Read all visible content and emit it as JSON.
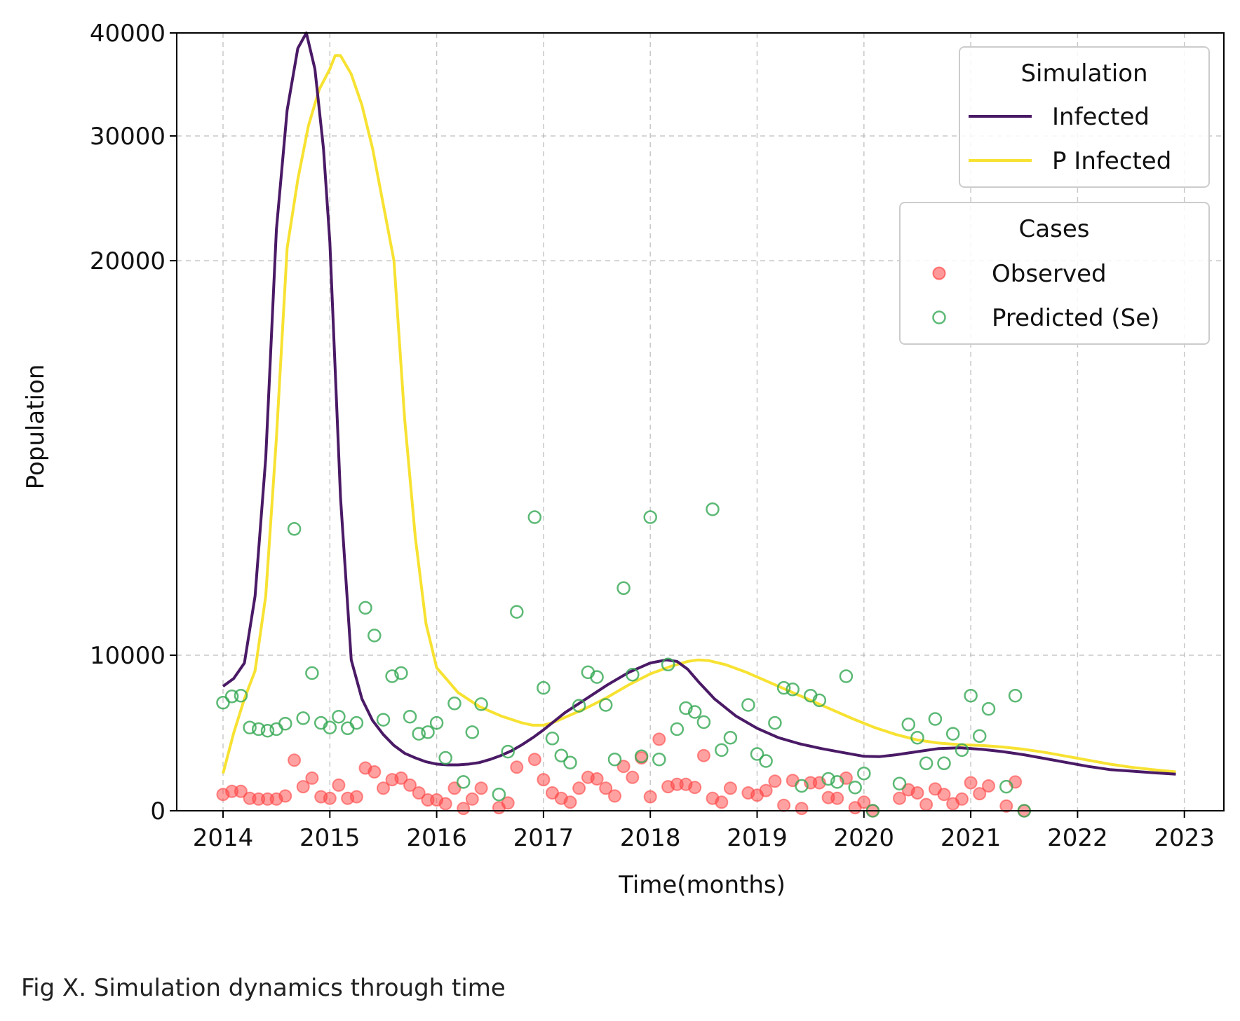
{
  "caption": "Fig X. Simulation dynamics through time",
  "chart_data": {
    "type": "line",
    "title": "",
    "xlabel": "Time(months)",
    "ylabel": "Population",
    "xlim": [
      2013.55,
      2023.45
    ],
    "ylim": [
      0,
      40000
    ],
    "x_ticks": [
      "2014",
      "2015",
      "2016",
      "2017",
      "2018",
      "2019",
      "2020",
      "2021",
      "2022",
      "2023"
    ],
    "y_ticks": [
      "0",
      "10000",
      "20000",
      "30000",
      "40000"
    ],
    "grid": true,
    "legends": [
      {
        "title": "Simulation",
        "placement": "top-right",
        "entries": [
          "Infected",
          "P Infected"
        ]
      },
      {
        "title": "Cases",
        "placement": "upper-right",
        "entries": [
          "Observed",
          "Predicted (Se)"
        ]
      }
    ],
    "colors": {
      "infected": "#4a1a66",
      "p_infected": "#f7e232",
      "observed": "#ff4444",
      "predicted": "#33a852"
    },
    "series": [
      {
        "name": "Infected",
        "kind": "line",
        "color": "#4a1a66",
        "x": [
          2014.0,
          2014.1,
          2014.2,
          2014.3,
          2014.4,
          2014.5,
          2014.6,
          2014.7,
          2014.78,
          2014.86,
          2014.94,
          2015.0,
          2015.1,
          2015.2,
          2015.3,
          2015.4,
          2015.5,
          2015.6,
          2015.7,
          2015.8,
          2015.9,
          2016.0,
          2016.1,
          2016.2,
          2016.3,
          2016.4,
          2016.5,
          2016.6,
          2016.7,
          2016.8,
          2016.9,
          2017.0,
          2017.2,
          2017.4,
          2017.6,
          2017.8,
          2018.0,
          2018.15,
          2018.25,
          2018.35,
          2018.45,
          2018.6,
          2018.8,
          2019.0,
          2019.2,
          2019.4,
          2019.6,
          2019.8,
          2020.0,
          2020.15,
          2020.3,
          2020.5,
          2020.7,
          2020.9,
          2021.1,
          2021.3,
          2021.5,
          2021.7,
          2021.9,
          2022.1,
          2022.3,
          2022.5,
          2022.7,
          2022.92
        ],
        "y": [
          8000,
          8500,
          9500,
          11500,
          15000,
          22500,
          32500,
          38500,
          40000,
          36500,
          29000,
          21500,
          14000,
          9700,
          7200,
          5800,
          4900,
          4200,
          3700,
          3400,
          3150,
          3000,
          2950,
          2950,
          3000,
          3100,
          3300,
          3550,
          3850,
          4250,
          4700,
          5200,
          6300,
          7200,
          8100,
          8900,
          9500,
          9700,
          9600,
          9100,
          8300,
          7200,
          6100,
          5300,
          4700,
          4300,
          4000,
          3750,
          3500,
          3480,
          3600,
          3800,
          4000,
          4050,
          3950,
          3800,
          3600,
          3350,
          3100,
          2850,
          2650,
          2550,
          2450,
          2350
        ]
      },
      {
        "name": "P Infected",
        "kind": "line",
        "color": "#f7e232",
        "x": [
          2014.0,
          2014.1,
          2014.2,
          2014.3,
          2014.4,
          2014.5,
          2014.6,
          2014.7,
          2014.8,
          2014.9,
          2015.0,
          2015.05,
          2015.1,
          2015.2,
          2015.3,
          2015.4,
          2015.5,
          2015.6,
          2015.7,
          2015.8,
          2015.9,
          2016.0,
          2016.2,
          2016.4,
          2016.6,
          2016.8,
          2016.9,
          2017.0,
          2017.1,
          2017.2,
          2017.4,
          2017.6,
          2017.8,
          2018.0,
          2018.2,
          2018.35,
          2018.45,
          2018.55,
          2018.7,
          2018.9,
          2019.1,
          2019.3,
          2019.5,
          2019.7,
          2019.9,
          2020.1,
          2020.3,
          2020.5,
          2020.7,
          2020.9,
          2021.1,
          2021.3,
          2021.5,
          2021.7,
          2021.9,
          2022.1,
          2022.3,
          2022.5,
          2022.7,
          2022.92
        ],
        "y": [
          2400,
          5000,
          7200,
          9000,
          11500,
          15500,
          21000,
          26500,
          31000,
          34500,
          36500,
          37800,
          37800,
          36000,
          33000,
          29000,
          24500,
          20000,
          16000,
          13000,
          10800,
          9200,
          7600,
          6700,
          6100,
          5650,
          5500,
          5500,
          5700,
          6000,
          6600,
          7300,
          8100,
          8800,
          9300,
          9600,
          9700,
          9650,
          9400,
          8900,
          8300,
          7700,
          7100,
          6500,
          5900,
          5350,
          4900,
          4550,
          4350,
          4250,
          4200,
          4100,
          3950,
          3750,
          3500,
          3250,
          3000,
          2800,
          2650,
          2500
        ]
      },
      {
        "name": "Observed",
        "kind": "scatter",
        "color": "#ff4444",
        "x": [
          2014.0,
          2014.083,
          2014.167,
          2014.25,
          2014.333,
          2014.417,
          2014.5,
          2014.583,
          2014.667,
          2014.75,
          2014.833,
          2014.917,
          2015.0,
          2015.083,
          2015.167,
          2015.25,
          2015.333,
          2015.417,
          2015.5,
          2015.583,
          2015.667,
          2015.75,
          2015.833,
          2015.917,
          2016.0,
          2016.083,
          2016.167,
          2016.25,
          2016.333,
          2016.417,
          2016.583,
          2016.667,
          2016.75,
          2016.917,
          2017.0,
          2017.083,
          2017.167,
          2017.25,
          2017.333,
          2017.417,
          2017.5,
          2017.583,
          2017.667,
          2017.75,
          2017.833,
          2017.917,
          2018.0,
          2018.083,
          2018.167,
          2018.25,
          2018.333,
          2018.417,
          2018.5,
          2018.583,
          2018.667,
          2018.75,
          2018.917,
          2019.0,
          2019.083,
          2019.167,
          2019.25,
          2019.333,
          2019.417,
          2019.5,
          2019.583,
          2019.667,
          2019.75,
          2019.833,
          2019.917,
          2020.0,
          2020.083,
          2020.333,
          2020.417,
          2020.5,
          2020.583,
          2020.667,
          2020.75,
          2020.833,
          2020.917,
          2021.0,
          2021.083,
          2021.167,
          2021.333,
          2021.417,
          2021.5
        ],
        "y": [
          1050,
          1250,
          1250,
          800,
          750,
          750,
          750,
          950,
          3250,
          1550,
          2100,
          900,
          800,
          1650,
          800,
          900,
          2750,
          2500,
          1450,
          2000,
          2100,
          1650,
          1150,
          700,
          700,
          450,
          1450,
          150,
          750,
          1450,
          200,
          500,
          2800,
          3300,
          2000,
          1150,
          800,
          550,
          1450,
          2150,
          2050,
          1450,
          950,
          2850,
          2150,
          3400,
          900,
          4600,
          1550,
          1700,
          1700,
          1500,
          3550,
          800,
          550,
          1450,
          1150,
          1000,
          1300,
          1900,
          350,
          1950,
          150,
          1800,
          1800,
          850,
          800,
          2100,
          200,
          550,
          0,
          800,
          1350,
          1150,
          400,
          1400,
          1050,
          450,
          750,
          1800,
          1100,
          1600,
          300,
          1850,
          0
        ]
      },
      {
        "name": "Predicted (Se)",
        "kind": "scatter",
        "color": "#33a852",
        "x": [
          2014.0,
          2014.083,
          2014.167,
          2014.25,
          2014.333,
          2014.417,
          2014.5,
          2014.583,
          2014.667,
          2014.75,
          2014.833,
          2014.917,
          2015.0,
          2015.083,
          2015.167,
          2015.25,
          2015.333,
          2015.417,
          2015.5,
          2015.583,
          2015.667,
          2015.75,
          2015.833,
          2015.917,
          2016.0,
          2016.083,
          2016.167,
          2016.25,
          2016.333,
          2016.417,
          2016.583,
          2016.667,
          2016.75,
          2016.917,
          2017.0,
          2017.083,
          2017.167,
          2017.25,
          2017.333,
          2017.417,
          2017.5,
          2017.583,
          2017.667,
          2017.75,
          2017.833,
          2017.917,
          2018.0,
          2018.083,
          2018.167,
          2018.25,
          2018.333,
          2018.417,
          2018.5,
          2018.583,
          2018.667,
          2018.75,
          2018.917,
          2019.0,
          2019.083,
          2019.167,
          2019.25,
          2019.333,
          2019.417,
          2019.5,
          2019.583,
          2019.667,
          2019.75,
          2019.833,
          2019.917,
          2020.0,
          2020.083,
          2020.333,
          2020.417,
          2020.5,
          2020.583,
          2020.667,
          2020.75,
          2020.833,
          2020.917,
          2021.0,
          2021.083,
          2021.167,
          2021.333,
          2021.417,
          2021.5
        ],
        "y": [
          6950,
          7350,
          7400,
          5350,
          5250,
          5150,
          5250,
          5600,
          13200,
          5950,
          8850,
          5650,
          5350,
          6050,
          5300,
          5650,
          11200,
          10500,
          5850,
          8650,
          8850,
          6050,
          4950,
          5050,
          5650,
          3400,
          6900,
          1850,
          5050,
          6850,
          1050,
          3800,
          11100,
          13500,
          7900,
          4650,
          3550,
          3100,
          6750,
          8900,
          8600,
          6800,
          3300,
          11700,
          8750,
          3500,
          13500,
          3300,
          9400,
          5250,
          6600,
          6350,
          5700,
          13700,
          3900,
          4700,
          6800,
          3650,
          3200,
          5650,
          7900,
          7800,
          1600,
          7400,
          7100,
          2050,
          1850,
          8650,
          1500,
          2400,
          0,
          1750,
          5550,
          4700,
          3050,
          5900,
          3050,
          4950,
          3900,
          7400,
          4800,
          6550,
          1550,
          7400,
          0
        ]
      }
    ]
  }
}
